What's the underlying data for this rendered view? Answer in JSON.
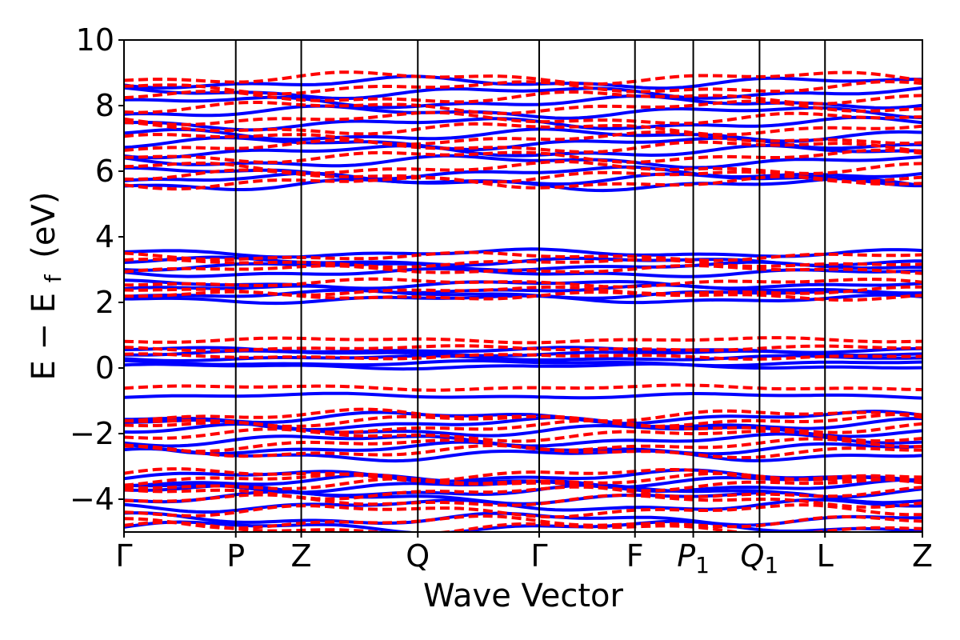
{
  "chart_data": {
    "type": "line",
    "title": "",
    "xlabel": "Wave Vector",
    "ylabel": "E − E",
    "ylabel_subscript": "f",
    "ylabel_unit": "(eV)",
    "ylim": [
      -5,
      10
    ],
    "yticks": [
      -4,
      -2,
      0,
      2,
      4,
      6,
      8,
      10
    ],
    "ytick_labels": [
      "−4",
      "−2",
      "0",
      "2",
      "4",
      "6",
      "8",
      "10"
    ],
    "grid": false,
    "legend": "none",
    "kpoints": [
      {
        "label": "Γ",
        "sub": "",
        "x": 0.0
      },
      {
        "label": "P",
        "sub": "",
        "x": 0.14
      },
      {
        "label": "Z",
        "sub": "",
        "x": 0.222
      },
      {
        "label": "Q",
        "sub": "",
        "x": 0.368
      },
      {
        "label": "Γ",
        "sub": "",
        "x": 0.52
      },
      {
        "label": "F",
        "sub": "",
        "x": 0.64
      },
      {
        "label": "P",
        "sub": "1",
        "x": 0.713
      },
      {
        "label": "Q",
        "sub": "1",
        "x": 0.796
      },
      {
        "label": "L",
        "sub": "",
        "x": 0.878
      },
      {
        "label": "Z",
        "sub": "",
        "x": 1.0
      }
    ],
    "series": [
      {
        "color": "#0000ff",
        "style": "solid",
        "band_energies": [
          -4.85,
          -4.6,
          -4.2,
          -3.95,
          -3.75,
          -3.6,
          -3.45,
          -3.3,
          -2.65,
          -2.45,
          -2.2,
          -1.9,
          -1.7,
          -1.5,
          -0.85,
          0.05,
          0.15,
          0.3,
          0.45,
          0.55,
          2.1,
          2.25,
          2.4,
          2.55,
          2.9,
          3.1,
          3.25,
          3.5,
          5.6,
          5.75,
          5.95,
          6.3,
          6.6,
          6.85,
          7.1,
          7.45,
          7.8,
          8.1,
          8.4,
          8.7
        ]
      },
      {
        "color": "#ff0000",
        "style": "dashed",
        "band_energies": [
          -4.9,
          -4.7,
          -4.35,
          -4.05,
          -3.8,
          -3.55,
          -3.4,
          -3.25,
          -2.55,
          -2.35,
          -2.05,
          -1.8,
          -1.6,
          -1.45,
          -0.6,
          0.35,
          0.6,
          0.85,
          2.2,
          2.35,
          2.6,
          3.0,
          3.2,
          3.4,
          5.65,
          5.85,
          6.1,
          6.45,
          6.75,
          7.0,
          7.3,
          7.6,
          7.95,
          8.25,
          8.55,
          8.85
        ]
      }
    ]
  }
}
